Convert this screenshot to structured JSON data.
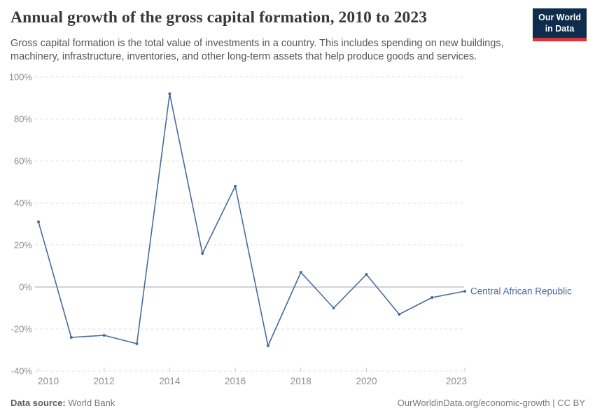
{
  "header": {
    "title": "Annual growth of the gross capital formation, 2010 to 2023",
    "subtitle": "Gross capital formation is the total value of investments in a country. This includes spending on new buildings, machinery, infrastructure, inventories, and other long-term assets that help produce goods and services."
  },
  "logo": {
    "line1": "Our World",
    "line2": "in Data",
    "bg_color": "#0e2c4c",
    "bar_color": "#d8353f",
    "text_color": "#ffffff"
  },
  "chart_data": {
    "type": "line",
    "title": "Annual growth of the gross capital formation, 2010 to 2023",
    "x": [
      2010,
      2011,
      2012,
      2013,
      2014,
      2015,
      2016,
      2017,
      2018,
      2019,
      2020,
      2021,
      2022,
      2023
    ],
    "series": [
      {
        "name": "Central African Republic",
        "color": "#4C6A9C",
        "values": [
          31,
          -24,
          -23,
          -27,
          92,
          16,
          48,
          -28,
          7,
          -10,
          6,
          -13,
          -5,
          -2
        ]
      }
    ],
    "unit": "%",
    "ylim": [
      -40,
      100
    ],
    "yticks": [
      {
        "value": 100,
        "label": "100%"
      },
      {
        "value": 80,
        "label": "80%"
      },
      {
        "value": 60,
        "label": "60%"
      },
      {
        "value": 40,
        "label": "40%"
      },
      {
        "value": 20,
        "label": "20%"
      },
      {
        "value": 0,
        "label": "0%"
      },
      {
        "value": -20,
        "label": "-20%"
      },
      {
        "value": -40,
        "label": "-40%"
      }
    ],
    "xticks": [
      {
        "value": 2010,
        "label": "2010"
      },
      {
        "value": 2012,
        "label": "2012"
      },
      {
        "value": 2014,
        "label": "2014"
      },
      {
        "value": 2016,
        "label": "2016"
      },
      {
        "value": 2018,
        "label": "2018"
      },
      {
        "value": 2020,
        "label": "2020"
      },
      {
        "value": 2023,
        "label": "2023"
      }
    ],
    "grid": "horizontal-dashed",
    "zero_line": true,
    "end_label": "Central African Republic",
    "legend_position": "end-of-line"
  },
  "footer": {
    "source_label": "Data source:",
    "source_value": " World Bank",
    "credit": "OurWorldinData.org/economic-growth | CC BY"
  },
  "colors": {
    "line": "#4C6A9C",
    "grid": "#e0e0e0",
    "zero_line": "#a5a5a5",
    "axis_text": "#8e8e8e",
    "tick_mark": "#c8c8c8",
    "title_text": "#383838",
    "subtitle_text": "#555555",
    "footer_text": "#7a7a7a"
  }
}
